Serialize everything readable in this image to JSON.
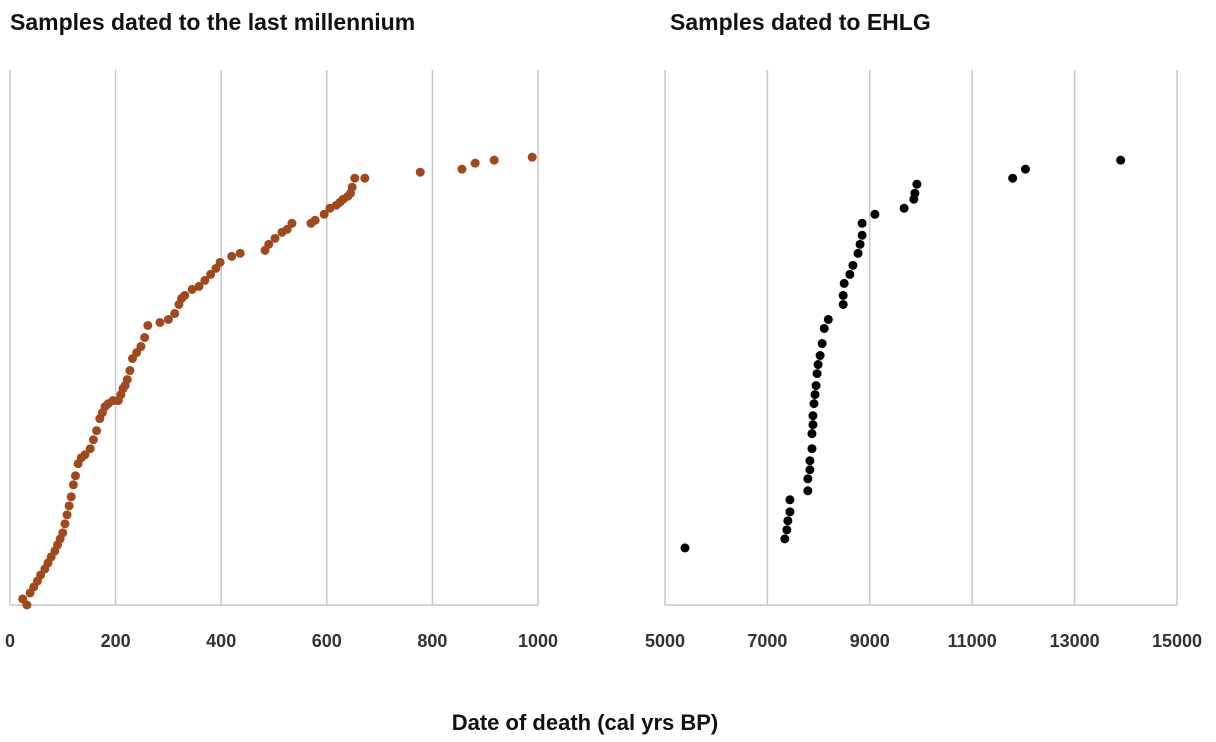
{
  "chart_data": [
    {
      "type": "scatter",
      "title": "Samples dated to the last millennium",
      "color": "#a0491e",
      "x": [
        24,
        32,
        38,
        45,
        52,
        58,
        66,
        72,
        78,
        85,
        90,
        95,
        100,
        104,
        108,
        112,
        116,
        120,
        124,
        129,
        135,
        142,
        152,
        158,
        164,
        170,
        175,
        180,
        186,
        195,
        205,
        210,
        214,
        218,
        222,
        227,
        232,
        240,
        248,
        255,
        261,
        284,
        300,
        312,
        320,
        325,
        331,
        345,
        358,
        369,
        380,
        390,
        398,
        420,
        436,
        483,
        490,
        502,
        515,
        525,
        534,
        570,
        578,
        595,
        606,
        618,
        625,
        631,
        640,
        645,
        648,
        653,
        672,
        777,
        856,
        881,
        917,
        989
      ],
      "y": [
        2,
        0,
        4,
        6,
        8,
        10,
        12,
        14,
        16,
        18,
        20,
        22,
        24,
        27,
        30,
        33,
        36,
        40,
        43,
        47,
        49,
        50,
        52,
        55,
        58,
        62,
        64,
        66,
        67,
        68,
        68,
        70,
        72,
        73,
        75,
        78,
        82,
        84,
        86,
        89,
        93,
        94,
        95,
        97,
        100,
        102,
        103,
        105,
        106,
        108,
        110,
        112,
        114,
        116,
        117,
        118,
        120,
        122,
        124,
        125,
        127,
        127,
        128,
        130,
        132,
        133,
        134,
        135,
        136,
        137,
        139,
        142,
        142,
        144,
        145,
        147,
        148,
        149
      ],
      "xlim": [
        0,
        1000
      ],
      "xticks": [
        0,
        200,
        400,
        600,
        800,
        1000
      ],
      "ylim": [
        0,
        178
      ],
      "grid": true
    },
    {
      "type": "scatter",
      "title": "Samples dated to EHLG",
      "color": "#000000",
      "x": [
        5390,
        7340,
        7380,
        7400,
        7440,
        7440,
        7790,
        7790,
        7830,
        7830,
        7870,
        7870,
        7890,
        7890,
        7910,
        7930,
        7950,
        7970,
        7990,
        8030,
        8070,
        8110,
        8190,
        8480,
        8480,
        8500,
        8610,
        8670,
        8770,
        8810,
        8850,
        8850,
        9100,
        9670,
        9860,
        9880,
        9920,
        11790,
        12040,
        13900
      ],
      "y": [
        19,
        22,
        25,
        28,
        31,
        35,
        38,
        42,
        45,
        48,
        52,
        57,
        60,
        63,
        67,
        70,
        73,
        77,
        80,
        83,
        87,
        92,
        95,
        100,
        103,
        107,
        110,
        113,
        117,
        120,
        123,
        127,
        130,
        132,
        135,
        137,
        140,
        142,
        145,
        148
      ],
      "xlim": [
        5000,
        15000
      ],
      "xticks": [
        5000,
        7000,
        9000,
        11000,
        13000,
        15000
      ],
      "ylim": [
        0,
        178
      ],
      "grid": true
    }
  ],
  "xlabel": "Date of death (cal yrs BP)"
}
